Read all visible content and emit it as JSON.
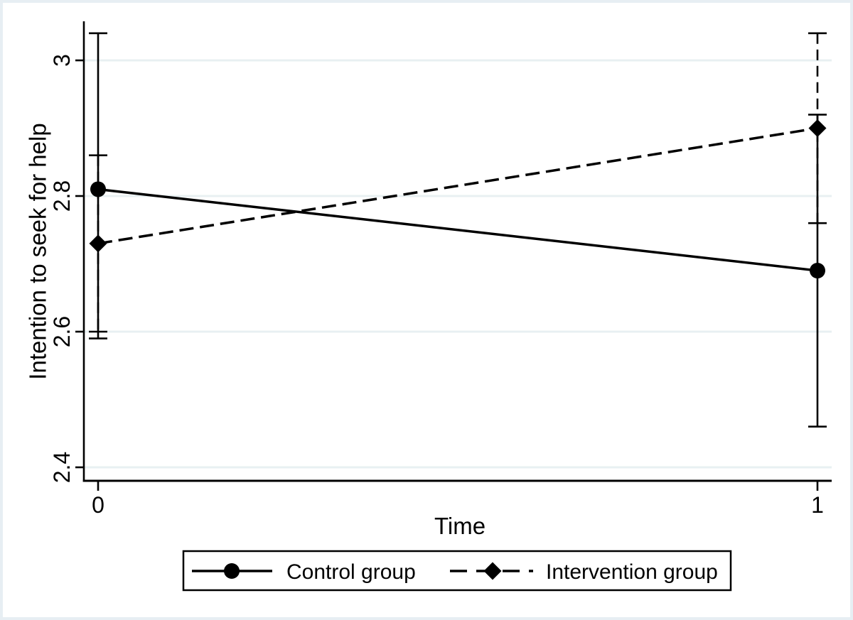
{
  "figure": {
    "background": "#ffffff",
    "frame_color": "#e7eef3"
  },
  "chart_data": {
    "type": "line",
    "title": "",
    "xlabel": "Time",
    "ylabel": "Intention to seek for help",
    "x": [
      0,
      1
    ],
    "xtick_labels": [
      "0",
      "1"
    ],
    "ytick_values": [
      2.4,
      2.6,
      2.8,
      3
    ],
    "ytick_labels": [
      "2.4",
      "2.6",
      "2.8",
      "3"
    ],
    "ylim": [
      2.38,
      3.06
    ],
    "grid": true,
    "gridline_color": "#e8f0f2",
    "axis_color": "#000000",
    "legend_position": "bottom-center",
    "series": [
      {
        "name": "Control group",
        "marker": "circle",
        "line_style": "solid",
        "color": "#000000",
        "values": [
          2.81,
          2.69
        ],
        "ci_lower": [
          2.59,
          2.46
        ],
        "ci_upper": [
          3.04,
          2.92
        ]
      },
      {
        "name": "Intervention group",
        "marker": "diamond",
        "line_style": "dashed",
        "color": "#000000",
        "values": [
          2.73,
          2.9
        ],
        "ci_lower": [
          2.6,
          2.76
        ],
        "ci_upper": [
          2.86,
          3.04
        ]
      }
    ]
  }
}
